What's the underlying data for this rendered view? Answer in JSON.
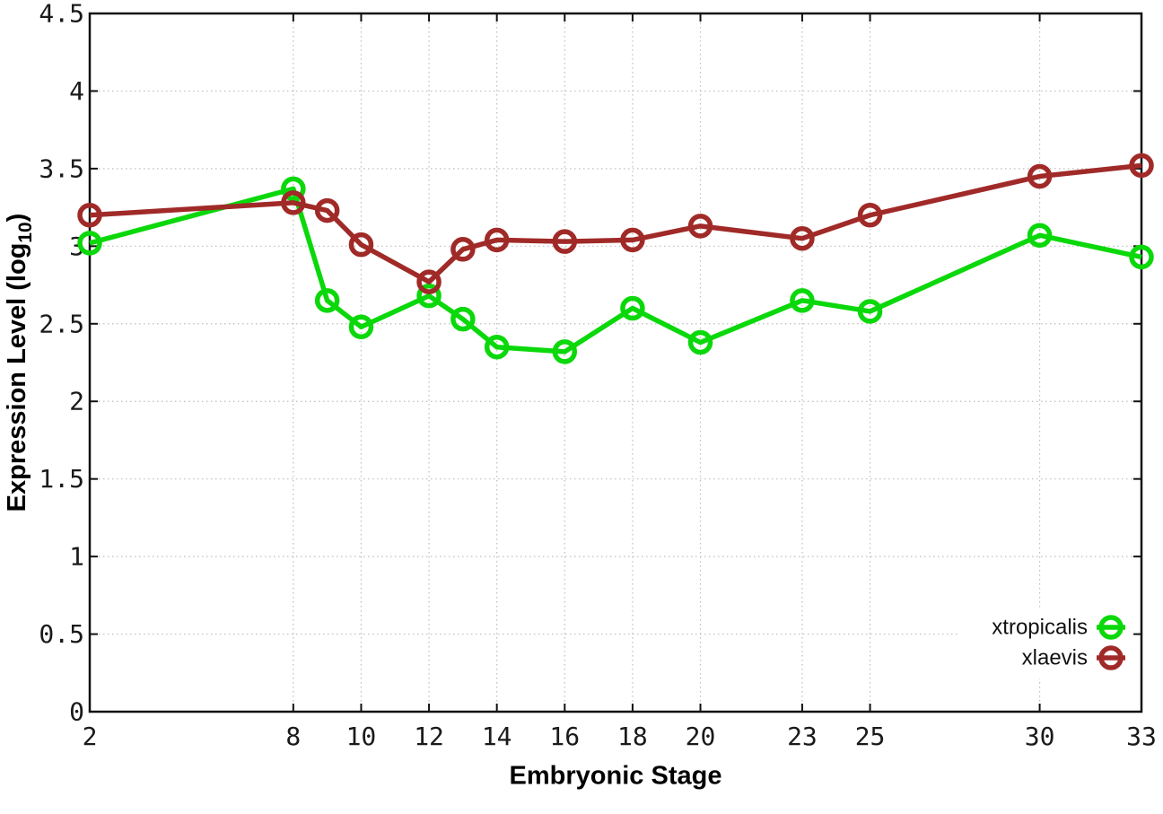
{
  "chart_data": {
    "type": "line",
    "title": "",
    "xlabel": "Embryonic Stage",
    "ylabel_prefix": "Expression Level (log",
    "ylabel_sub": "10",
    "ylabel_suffix": ")",
    "xlim": [
      2,
      33
    ],
    "ylim": [
      0,
      4.5
    ],
    "grid": true,
    "legend_position": "bottom-right",
    "marker": "open-circle",
    "x": [
      2,
      8,
      9,
      10,
      12,
      13,
      14,
      16,
      18,
      20,
      23,
      25,
      30,
      33
    ],
    "x_ticks": [
      2,
      8,
      10,
      12,
      14,
      16,
      18,
      20,
      23,
      25,
      30,
      33
    ],
    "x_tick_labels": [
      "2",
      "8",
      "10",
      "12",
      "14",
      "16",
      "18",
      "20",
      "23",
      "25",
      "30",
      "33"
    ],
    "y_ticks": [
      0,
      0.5,
      1,
      1.5,
      2,
      2.5,
      3,
      3.5,
      4,
      4.5
    ],
    "y_tick_labels": [
      "0",
      "0.5",
      "1",
      "1.5",
      "2",
      "2.5",
      "3",
      "3.5",
      "4",
      "4.5"
    ],
    "series": [
      {
        "name": "xtropicalis",
        "color": "#0bd80b",
        "values": [
          3.02,
          3.37,
          2.65,
          2.48,
          2.68,
          2.53,
          2.35,
          2.32,
          2.6,
          2.38,
          2.65,
          2.58,
          3.07,
          2.93
        ]
      },
      {
        "name": "xlaevis",
        "color": "#a02a28",
        "values": [
          3.2,
          3.28,
          3.23,
          3.01,
          2.77,
          2.98,
          3.04,
          3.03,
          3.04,
          3.13,
          3.05,
          3.2,
          3.45,
          3.52
        ]
      }
    ]
  },
  "colors": {
    "background": "#ffffff",
    "grid": "#bdbdbd",
    "axis": "#111111",
    "tick_label": "#1a1a1a",
    "legend_text": "#111111"
  }
}
